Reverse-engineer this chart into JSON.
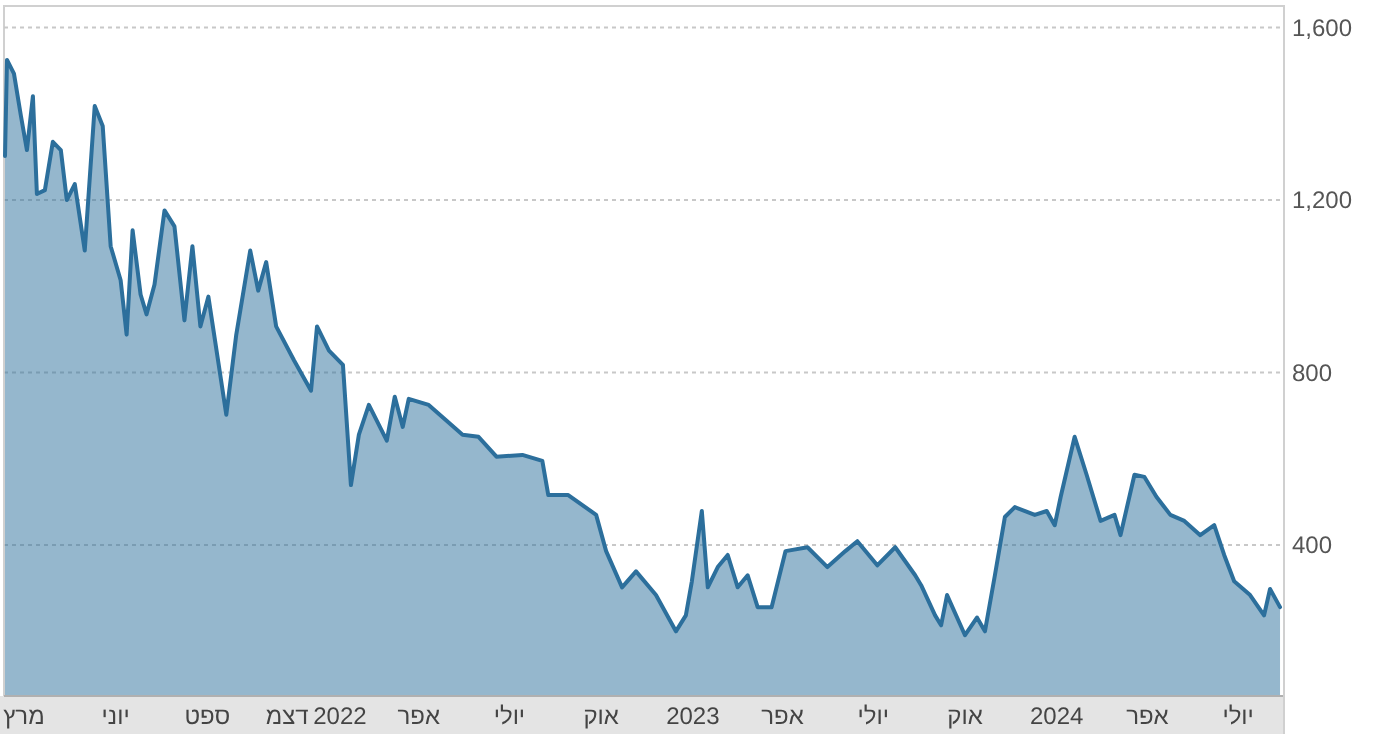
{
  "chart_data": {
    "type": "area",
    "color": "#2c6f9c",
    "grid": "y",
    "x": [
      "2021-02-10",
      "2021-02-12",
      "2021-02-19",
      "2021-02-26",
      "2021-03-04",
      "2021-03-10",
      "2021-03-14",
      "2021-03-22",
      "2021-03-30",
      "2021-04-07",
      "2021-04-13",
      "2021-04-21",
      "2021-05-01",
      "2021-05-11",
      "2021-05-19",
      "2021-05-27",
      "2021-06-06",
      "2021-06-12",
      "2021-06-18",
      "2021-06-26",
      "2021-07-02",
      "2021-07-10",
      "2021-07-20",
      "2021-07-30",
      "2021-08-09",
      "2021-08-17",
      "2021-08-25",
      "2021-09-02",
      "2021-09-20",
      "2021-09-30",
      "2021-10-14",
      "2021-10-22",
      "2021-10-30",
      "2021-11-09",
      "2021-11-27",
      "2021-12-14",
      "2021-12-20",
      "2022-01-01",
      "2022-01-15",
      "2022-01-23",
      "2022-01-31",
      "2022-02-10",
      "2022-02-28",
      "2022-03-08",
      "2022-03-16",
      "2022-03-22",
      "2022-04-11",
      "2022-04-29",
      "2022-05-15",
      "2022-05-31",
      "2022-06-18",
      "2022-07-14",
      "2022-08-03",
      "2022-08-09",
      "2022-08-29",
      "2022-09-26",
      "2022-10-06",
      "2022-10-22",
      "2022-11-05",
      "2022-11-25",
      "2022-12-15",
      "2022-12-25",
      "2022-12-31",
      "2023-01-10",
      "2023-01-16",
      "2023-01-26",
      "2023-02-05",
      "2023-02-15",
      "2023-02-25",
      "2023-03-07",
      "2023-03-21",
      "2023-04-04",
      "2023-04-26",
      "2023-05-16",
      "2023-06-03",
      "2023-06-15",
      "2023-07-05",
      "2023-07-23",
      "2023-08-12",
      "2023-08-18",
      "2023-09-01",
      "2023-09-07",
      "2023-09-13",
      "2023-10-01",
      "2023-10-13",
      "2023-10-21",
      "2023-10-31",
      "2023-11-10",
      "2023-11-20",
      "2023-12-10",
      "2023-12-22",
      "2023-12-30",
      "2024-01-05",
      "2024-01-19",
      "2024-01-31",
      "2024-02-14",
      "2024-02-28",
      "2024-03-05",
      "2024-03-19",
      "2024-03-29",
      "2024-04-10",
      "2024-04-24",
      "2024-05-08",
      "2024-05-24",
      "2024-06-07",
      "2024-06-17",
      "2024-06-27",
      "2024-07-13",
      "2024-07-27",
      "2024-08-02",
      "2024-08-12"
    ],
    "values": [
      1302,
      1525,
      1493,
      1395,
      1316,
      1441,
      1214,
      1223,
      1335,
      1316,
      1200,
      1237,
      1083,
      1418,
      1372,
      1093,
      1014,
      888,
      1130,
      981,
      935,
      1004,
      1176,
      1139,
      921,
      1093,
      907,
      976,
      702,
      888,
      1083,
      990,
      1056,
      907,
      828,
      758,
      907,
      851,
      818,
      539,
      656,
      725,
      642,
      744,
      674,
      739,
      725,
      688,
      656,
      651,
      605,
      609,
      595,
      516,
      516,
      470,
      386,
      302,
      339,
      284,
      200,
      237,
      316,
      479,
      302,
      349,
      377,
      302,
      330,
      256,
      256,
      386,
      395,
      349,
      386,
      409,
      353,
      395,
      330,
      307,
      237,
      214,
      284,
      191,
      232,
      200,
      330,
      465,
      488,
      470,
      479,
      446,
      512,
      651,
      563,
      456,
      470,
      423,
      563,
      558,
      512,
      470,
      456,
      423,
      446,
      377,
      316,
      284,
      237,
      298,
      256
    ],
    "xlim": [
      "2021-02-09",
      "2024-08-16"
    ],
    "xticks": [
      {
        "value": "2021-03-01",
        "label": "מרץ"
      },
      {
        "value": "2021-06-01",
        "label": "יוני"
      },
      {
        "value": "2021-09-01",
        "label": "ספט"
      },
      {
        "value": "2021-12-01",
        "label": "דצמ"
      },
      {
        "value": "2022-01-01",
        "label": "2022"
      },
      {
        "value": "2022-04-01",
        "label": "אפר"
      },
      {
        "value": "2022-07-01",
        "label": "יולי"
      },
      {
        "value": "2022-10-01",
        "label": "אוק"
      },
      {
        "value": "2023-01-01",
        "label": "2023"
      },
      {
        "value": "2023-04-01",
        "label": "אפר"
      },
      {
        "value": "2023-07-01",
        "label": "יולי"
      },
      {
        "value": "2023-10-01",
        "label": "אוק"
      },
      {
        "value": "2024-01-01",
        "label": "2024"
      },
      {
        "value": "2024-04-01",
        "label": "אפר"
      },
      {
        "value": "2024-07-01",
        "label": "יולי"
      }
    ],
    "ylim": [
      50,
      1650
    ],
    "yticks": [
      400,
      800,
      {
        "value": 1200,
        "label": "1,200"
      },
      {
        "value": 1600,
        "label": "1,600"
      }
    ]
  }
}
